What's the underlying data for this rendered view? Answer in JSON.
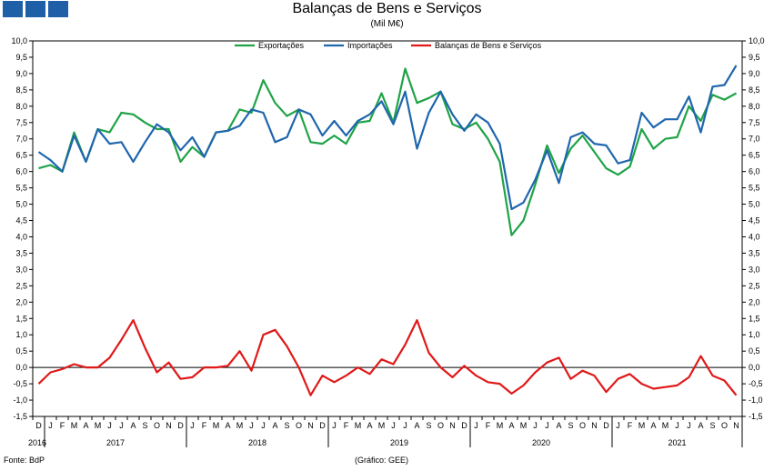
{
  "header": {
    "title": "Balanças de Bens e Serviços",
    "subtitle": "(Mil M€)"
  },
  "footer": {
    "source": "Fonte: BdP",
    "credit": "(Gráfico: GEE)"
  },
  "colors": {
    "logo": "#1f5fa8",
    "exportacoes": "#1fa347",
    "importacoes": "#1f66ad",
    "balancas": "#e01919"
  },
  "chart_data": {
    "type": "line",
    "title": "Balanças de Bens e Serviços",
    "subtitle": "(Mil M€)",
    "legend_position": "top-center",
    "grid": false,
    "ylim": [
      -1.5,
      10.0
    ],
    "ytick_labels": [
      "-1,5",
      "-1,0",
      "-0,5",
      "0,0",
      "0,5",
      "1,0",
      "1,5",
      "2,0",
      "2,5",
      "3,0",
      "3,5",
      "4,0",
      "4,5",
      "5,0",
      "5,5",
      "6,0",
      "6,5",
      "7,0",
      "7,5",
      "8,0",
      "8,5",
      "9,0",
      "9,5",
      "10,0"
    ],
    "x": [
      "D",
      "J",
      "F",
      "M",
      "A",
      "M",
      "J",
      "J",
      "A",
      "S",
      "O",
      "N",
      "D",
      "J",
      "F",
      "M",
      "A",
      "M",
      "J",
      "J",
      "A",
      "S",
      "O",
      "N",
      "D",
      "J",
      "F",
      "M",
      "A",
      "M",
      "J",
      "J",
      "A",
      "S",
      "O",
      "N",
      "D",
      "J",
      "F",
      "M",
      "A",
      "M",
      "J",
      "J",
      "A",
      "S",
      "O",
      "N",
      "D",
      "J",
      "F",
      "M",
      "A",
      "M",
      "J",
      "J",
      "A",
      "S",
      "O",
      "N"
    ],
    "years": [
      {
        "label": "2016",
        "start": 0,
        "end": 0
      },
      {
        "label": "2017",
        "start": 1,
        "end": 12
      },
      {
        "label": "2018",
        "start": 13,
        "end": 24
      },
      {
        "label": "2019",
        "start": 25,
        "end": 36
      },
      {
        "label": "2020",
        "start": 37,
        "end": 48
      },
      {
        "label": "2021",
        "start": 49,
        "end": 59
      }
    ],
    "series": [
      {
        "name": "Exportações",
        "color": "#1fa347",
        "values": [
          6.1,
          6.2,
          6.0,
          7.2,
          6.3,
          7.3,
          7.2,
          7.8,
          7.75,
          7.5,
          7.3,
          7.3,
          6.3,
          6.75,
          6.45,
          7.2,
          7.25,
          7.9,
          7.8,
          8.8,
          8.1,
          7.7,
          7.9,
          6.9,
          6.85,
          7.1,
          6.85,
          7.5,
          7.55,
          8.4,
          7.5,
          9.15,
          8.1,
          8.25,
          8.45,
          7.45,
          7.3,
          7.5,
          7.0,
          6.3,
          4.05,
          4.5,
          5.6,
          6.8,
          5.95,
          6.7,
          7.1,
          6.6,
          6.1,
          5.9,
          6.15,
          7.3,
          6.7,
          7.0,
          7.05,
          8.0,
          7.55,
          8.35,
          8.2,
          8.4
        ]
      },
      {
        "name": "Importações",
        "color": "#1f66ad",
        "values": [
          6.6,
          6.35,
          6.0,
          7.1,
          6.3,
          7.3,
          6.85,
          6.9,
          6.3,
          6.9,
          7.45,
          7.2,
          6.65,
          7.05,
          6.45,
          7.2,
          7.25,
          7.4,
          7.9,
          7.8,
          6.9,
          7.05,
          7.9,
          7.75,
          7.1,
          7.55,
          7.1,
          7.55,
          7.75,
          8.15,
          7.45,
          8.45,
          6.7,
          7.8,
          8.45,
          7.75,
          7.25,
          7.75,
          7.5,
          6.85,
          4.85,
          5.05,
          5.75,
          6.65,
          5.65,
          7.05,
          7.2,
          6.85,
          6.8,
          6.25,
          6.35,
          7.8,
          7.35,
          7.6,
          7.6,
          8.3,
          7.2,
          8.6,
          8.65,
          9.25
        ]
      },
      {
        "name": "Balanças de Bens e Serviços",
        "color": "#e01919",
        "values": [
          -0.5,
          -0.15,
          -0.05,
          0.1,
          0.0,
          0.0,
          0.3,
          0.85,
          1.45,
          0.6,
          -0.15,
          0.15,
          -0.35,
          -0.3,
          0.0,
          0.0,
          0.05,
          0.5,
          -0.1,
          1.0,
          1.15,
          0.65,
          0.0,
          -0.85,
          -0.25,
          -0.45,
          -0.25,
          0.0,
          -0.2,
          0.25,
          0.1,
          0.7,
          1.45,
          0.45,
          0.0,
          -0.3,
          0.05,
          -0.25,
          -0.45,
          -0.5,
          -0.8,
          -0.55,
          -0.15,
          0.15,
          0.3,
          -0.35,
          -0.1,
          -0.25,
          -0.75,
          -0.35,
          -0.2,
          -0.5,
          -0.65,
          -0.6,
          -0.55,
          -0.3,
          0.35,
          -0.25,
          -0.4,
          -0.85
        ]
      }
    ]
  }
}
